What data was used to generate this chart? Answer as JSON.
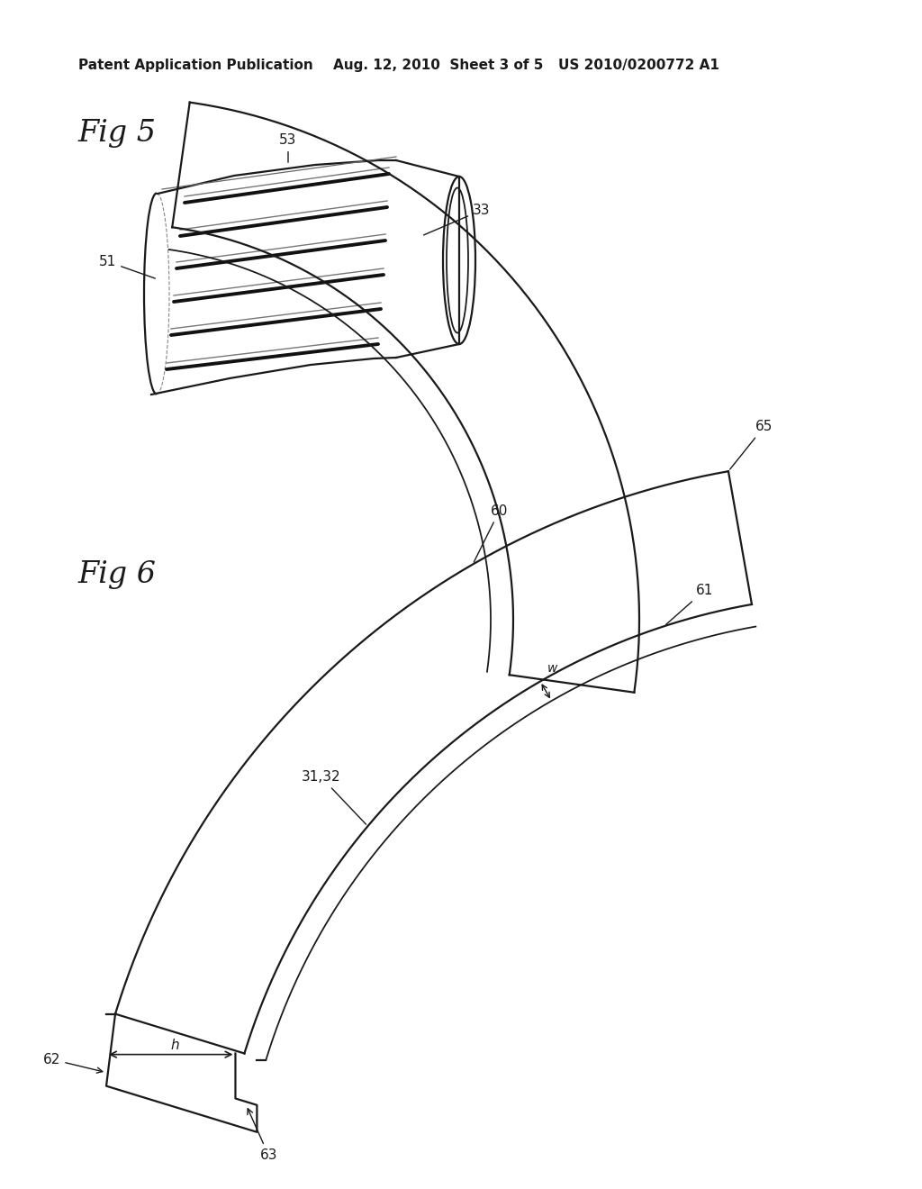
{
  "bg_color": "#ffffff",
  "header_left": "Patent Application Publication",
  "header_mid": "Aug. 12, 2010  Sheet 3 of 5",
  "header_right": "US 2010/0200772 A1",
  "fig5_label": "Fig 5",
  "fig6_label": "Fig 6",
  "line_color": "#1a1a1a",
  "line_width": 1.6,
  "label_fontsize": 11,
  "fig_label_fontsize": 24,
  "header_fontsize": 11
}
